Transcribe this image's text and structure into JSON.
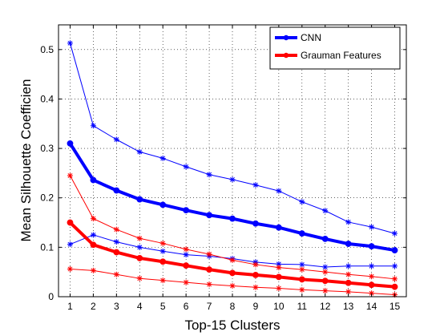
{
  "chart_data": {
    "type": "line",
    "title": "",
    "xlabel": "Top-15 Clusters",
    "ylabel": "Mean Silhouette Coefficien",
    "x": [
      1,
      2,
      3,
      4,
      5,
      6,
      7,
      8,
      9,
      10,
      11,
      12,
      13,
      14,
      15
    ],
    "xlim": [
      0.5,
      15.5
    ],
    "ylim": [
      0,
      0.55
    ],
    "yticks": [
      0,
      0.1,
      0.2,
      0.3,
      0.4,
      0.5
    ],
    "ytick_labels": [
      "0",
      "0.1",
      "0.2",
      "0.3",
      "0.4",
      "0.5"
    ],
    "grid": true,
    "legend_position": "top-right",
    "series": [
      {
        "name": "CNN",
        "role": "mean",
        "color": "#0000ff",
        "marker": "dot",
        "values": [
          0.31,
          0.236,
          0.215,
          0.197,
          0.186,
          0.175,
          0.165,
          0.158,
          0.148,
          0.14,
          0.128,
          0.117,
          0.107,
          0.102,
          0.094
        ]
      },
      {
        "role": "upper",
        "color": "#0000ff",
        "marker": "star",
        "values": [
          0.513,
          0.346,
          0.318,
          0.293,
          0.28,
          0.263,
          0.247,
          0.237,
          0.226,
          0.214,
          0.192,
          0.174,
          0.151,
          0.141,
          0.128
        ]
      },
      {
        "role": "lower",
        "color": "#0000ff",
        "marker": "star",
        "values": [
          0.106,
          0.125,
          0.111,
          0.1,
          0.092,
          0.085,
          0.082,
          0.077,
          0.07,
          0.066,
          0.065,
          0.06,
          0.062,
          0.062,
          0.062
        ]
      },
      {
        "name": "Grauman Features",
        "role": "mean",
        "color": "#ff0000",
        "marker": "dot",
        "values": [
          0.15,
          0.105,
          0.09,
          0.078,
          0.071,
          0.063,
          0.055,
          0.048,
          0.044,
          0.04,
          0.035,
          0.032,
          0.028,
          0.024,
          0.02
        ]
      },
      {
        "role": "upper",
        "color": "#ff0000",
        "marker": "star",
        "values": [
          0.245,
          0.158,
          0.136,
          0.118,
          0.108,
          0.096,
          0.086,
          0.074,
          0.065,
          0.059,
          0.055,
          0.05,
          0.045,
          0.041,
          0.036
        ]
      },
      {
        "role": "lower",
        "color": "#ff0000",
        "marker": "star",
        "values": [
          0.056,
          0.053,
          0.045,
          0.037,
          0.033,
          0.029,
          0.025,
          0.022,
          0.019,
          0.017,
          0.014,
          0.012,
          0.01,
          0.007,
          0.004
        ]
      }
    ]
  }
}
